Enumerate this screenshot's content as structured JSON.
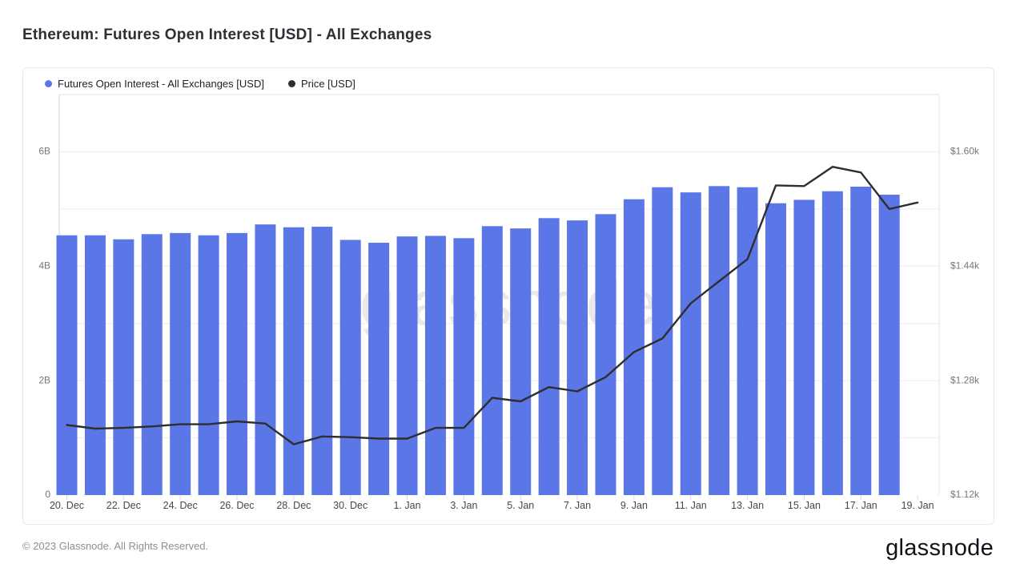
{
  "page": {
    "title": "Ethereum: Futures Open Interest [USD] - All Exchanges",
    "watermark": "glassnode",
    "footer_copyright": "© 2023 Glassnode. All Rights Reserved.",
    "footer_logo": "glassnode"
  },
  "legend": {
    "items": [
      {
        "label": "Futures Open Interest - All Exchanges [USD]",
        "color": "#5b76e7"
      },
      {
        "label": "Price [USD]",
        "color": "#2e2e2e"
      }
    ]
  },
  "chart_data": {
    "type": "bar+line",
    "title": "Ethereum: Futures Open Interest [USD] - All Exchanges",
    "x": [
      "20. Dec",
      "21. Dec",
      "22. Dec",
      "23. Dec",
      "24. Dec",
      "25. Dec",
      "26. Dec",
      "27. Dec",
      "28. Dec",
      "29. Dec",
      "30. Dec",
      "31. Dec",
      "1. Jan",
      "2. Jan",
      "3. Jan",
      "4. Jan",
      "5. Jan",
      "6. Jan",
      "7. Jan",
      "8. Jan",
      "9. Jan",
      "10. Jan",
      "11. Jan",
      "12. Jan",
      "13. Jan",
      "14. Jan",
      "15. Jan",
      "16. Jan",
      "17. Jan",
      "18. Jan",
      "19. Jan"
    ],
    "x_label_step": 2,
    "series": [
      {
        "name": "Futures Open Interest - All Exchanges [USD]",
        "type": "bar",
        "unit": "B",
        "color": "#5b76e7",
        "values": [
          4.54,
          4.54,
          4.47,
          4.56,
          4.58,
          4.54,
          4.58,
          4.73,
          4.68,
          4.69,
          4.46,
          4.41,
          4.52,
          4.53,
          4.49,
          4.7,
          4.66,
          4.84,
          4.8,
          4.91,
          5.17,
          5.38,
          5.29,
          5.4,
          5.38,
          5.1,
          5.16,
          5.31,
          5.39,
          5.25,
          null
        ]
      },
      {
        "name": "Price [USD]",
        "type": "line",
        "unit": "k",
        "color": "#2e2e2e",
        "values": [
          1.218,
          1.213,
          1.214,
          1.216,
          1.219,
          1.219,
          1.223,
          1.22,
          1.191,
          1.202,
          1.201,
          1.199,
          1.199,
          1.214,
          1.214,
          1.256,
          1.251,
          1.271,
          1.265,
          1.285,
          1.32,
          1.339,
          1.388,
          1.419,
          1.45,
          1.553,
          1.552,
          1.579,
          1.571,
          1.52,
          1.529
        ]
      }
    ],
    "y_left": {
      "tick_values": [
        0,
        2,
        4,
        6
      ],
      "tick_labels": [
        "0",
        "2B",
        "4B",
        "6B"
      ],
      "axis_max_units": 7,
      "gridline_step_units": 1
    },
    "y_right": {
      "tick_values": [
        1.12,
        1.28,
        1.44,
        1.6
      ],
      "tick_labels": [
        "$1.12k",
        "$1.28k",
        "$1.44k",
        "$1.60k"
      ]
    },
    "legend_position": "top-left",
    "grid": true,
    "style": {
      "grid_color": "#ededed",
      "left_axis_color": "#c9d3f2",
      "frame_color": "#e4e4e4",
      "tick_color": "#d9d9d9",
      "watermark_color": "#e9e9e9",
      "axis_text_color": "#76767c",
      "x_text_color": "#46464c"
    }
  }
}
